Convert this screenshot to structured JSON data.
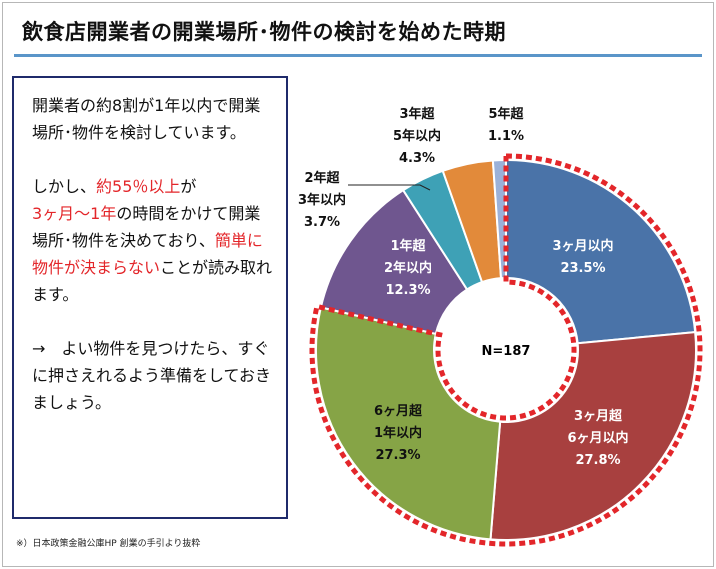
{
  "title": "飲食店開業者の開業場所･物件の検討を始めた時期",
  "note": {
    "p1": "開業者の約8割が1年以内で開業場所･物件を検討しています。",
    "p2_part1": "しかし、",
    "p2_red1": "約55％以上",
    "p2_part2": "が",
    "p2_red2": "3ヶ月〜1年",
    "p2_part3": "の時間をかけて開業場所･物件を決めており、",
    "p2_red3": "簡単に物件が決まらない",
    "p2_part4": "ことが読み取れます。",
    "p3": "→　よい物件を見つけたら、すぐに押さえれるよう準備をしておきましょう。"
  },
  "source": "※）日本政策金融公庫HP 創業の手引より抜粋",
  "chart_data": {
    "type": "pie",
    "center_label": "N=187",
    "slices": [
      {
        "lines": [
          "3ヶ月以内"
        ],
        "value": 23.5,
        "pct": "23.5%",
        "color": "#4a73a8"
      },
      {
        "lines": [
          "3ヶ月超",
          "6ヶ月以内"
        ],
        "value": 27.8,
        "pct": "27.8%",
        "color": "#a8403f"
      },
      {
        "lines": [
          "6ヶ月超",
          "1年以内"
        ],
        "value": 27.3,
        "pct": "27.3%",
        "color": "#86a446"
      },
      {
        "lines": [
          "1年超",
          "2年以内"
        ],
        "value": 12.3,
        "pct": "12.3%",
        "color": "#6f568f"
      },
      {
        "lines": [
          "2年超",
          "3年以内"
        ],
        "value": 3.7,
        "pct": "3.7%",
        "color": "#3ea1b6"
      },
      {
        "lines": [
          "3年超",
          "5年以内"
        ],
        "value": 4.3,
        "pct": "4.3%",
        "color": "#e28a3a"
      },
      {
        "lines": [
          "5年超"
        ],
        "value": 1.1,
        "pct": "1.1%",
        "color": "#9bb1d8"
      }
    ],
    "highlight_color": "#e3262a"
  }
}
